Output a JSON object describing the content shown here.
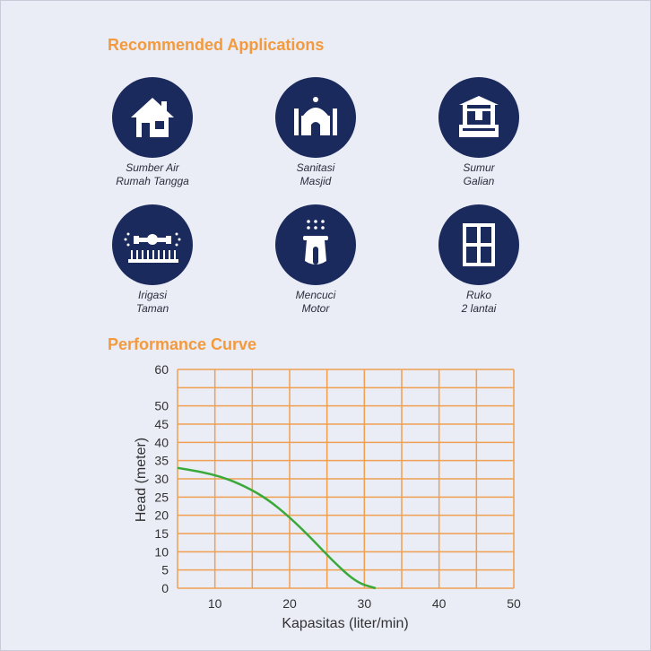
{
  "sections": {
    "applications_title": "Recommended Applications",
    "performance_title": "Performance Curve"
  },
  "applications": [
    {
      "icon": "house-icon",
      "label": "Sumber Air\nRumah Tangga"
    },
    {
      "icon": "mosque-icon",
      "label": "Sanitasi\nMasjid"
    },
    {
      "icon": "well-icon",
      "label": "Sumur\nGalian"
    },
    {
      "icon": "sprinkler-icon",
      "label": "Irigasi\nTaman"
    },
    {
      "icon": "scooter-icon",
      "label": "Mencuci\nMotor"
    },
    {
      "icon": "window-icon",
      "label": "Ruko\n2 lantai"
    }
  ],
  "colors": {
    "accent": "#f39a3c",
    "icon_bg": "#1b2a5c",
    "grid": "#f0a050",
    "curve": "#3aa93a"
  },
  "chart_data": {
    "type": "line",
    "title": "Performance Curve",
    "xlabel": "Kapasitas (liter/min)",
    "ylabel": "Head (meter)",
    "xlim": [
      5,
      50
    ],
    "ylim": [
      0,
      60
    ],
    "x_ticks": [
      10,
      20,
      30,
      40,
      50
    ],
    "y_ticks": [
      0,
      5,
      10,
      15,
      20,
      25,
      30,
      35,
      40,
      45,
      50,
      55,
      60
    ],
    "y_tick_labels": [
      "0",
      "5",
      "10",
      "15",
      "20",
      "25",
      "30",
      "35",
      "40",
      "45",
      "50",
      "",
      "60"
    ],
    "grid": true,
    "series": [
      {
        "x": [
          5,
          8,
          11,
          14,
          17,
          20,
          23,
          26,
          29,
          31.5
        ],
        "y": [
          33,
          32,
          30.5,
          28,
          24.5,
          19.5,
          13.5,
          7,
          1.5,
          0
        ]
      }
    ]
  }
}
